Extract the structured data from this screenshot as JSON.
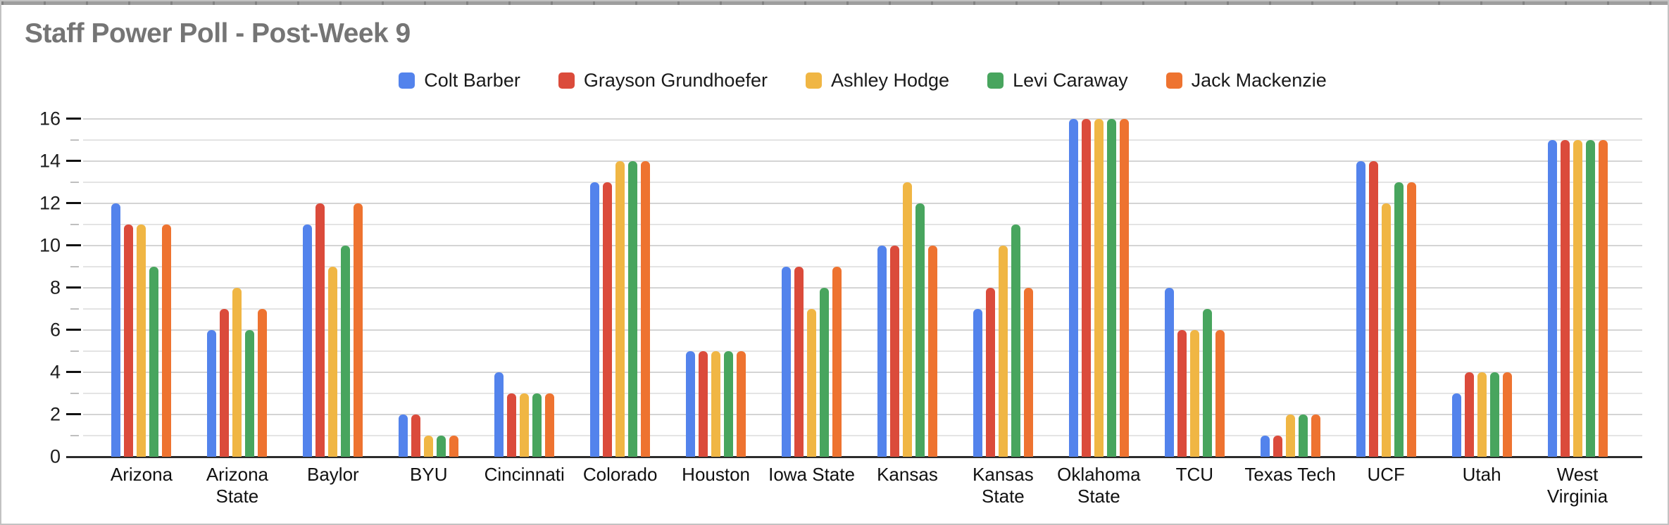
{
  "chart_data": {
    "type": "bar",
    "title": "Staff Power Poll - Post-Week 9",
    "title_color": "#757575",
    "legend_position": "top",
    "grid": true,
    "ylim": [
      0,
      16
    ],
    "yticks": [
      0,
      2,
      4,
      6,
      8,
      10,
      12,
      14,
      16
    ],
    "minor_tick_unit": 1,
    "categories": [
      "Arizona",
      "Arizona State",
      "Baylor",
      "BYU",
      "Cincinnati",
      "Colorado",
      "Houston",
      "Iowa State",
      "Kansas",
      "Kansas State",
      "Oklahoma State",
      "TCU",
      "Texas Tech",
      "UCF",
      "Utah",
      "West Virginia"
    ],
    "xlabel_lines": [
      [
        "Arizona"
      ],
      [
        "Arizona",
        "State"
      ],
      [
        "Baylor"
      ],
      [
        "BYU"
      ],
      [
        "Cincinnati"
      ],
      [
        "Colorado"
      ],
      [
        "Houston"
      ],
      [
        "Iowa State"
      ],
      [
        "Kansas"
      ],
      [
        "Kansas",
        "State"
      ],
      [
        "Oklahoma",
        "State"
      ],
      [
        "TCU"
      ],
      [
        "Texas Tech"
      ],
      [
        "UCF"
      ],
      [
        "Utah"
      ],
      [
        "West",
        "Virginia"
      ]
    ],
    "series": [
      {
        "name": "Colt Barber",
        "color": "#5383EC",
        "values": [
          12,
          6,
          11,
          2,
          4,
          13,
          5,
          9,
          10,
          7,
          16,
          8,
          1,
          14,
          3,
          15
        ]
      },
      {
        "name": "Grayson Grundhoefer",
        "color": "#DB4B3B",
        "values": [
          11,
          7,
          12,
          2,
          3,
          13,
          5,
          9,
          10,
          8,
          16,
          6,
          1,
          14,
          4,
          15
        ]
      },
      {
        "name": "Ashley Hodge",
        "color": "#F0B644",
        "values": [
          11,
          8,
          9,
          1,
          3,
          14,
          5,
          7,
          13,
          10,
          16,
          6,
          2,
          12,
          4,
          15
        ]
      },
      {
        "name": "Levi Caraway",
        "color": "#48A55E",
        "values": [
          9,
          6,
          10,
          1,
          3,
          14,
          5,
          8,
          12,
          11,
          16,
          7,
          2,
          13,
          4,
          15
        ]
      },
      {
        "name": "Jack Mackenzie",
        "color": "#EE7330",
        "values": [
          11,
          7,
          12,
          1,
          3,
          14,
          5,
          9,
          10,
          8,
          16,
          6,
          2,
          13,
          4,
          15
        ]
      }
    ]
  }
}
